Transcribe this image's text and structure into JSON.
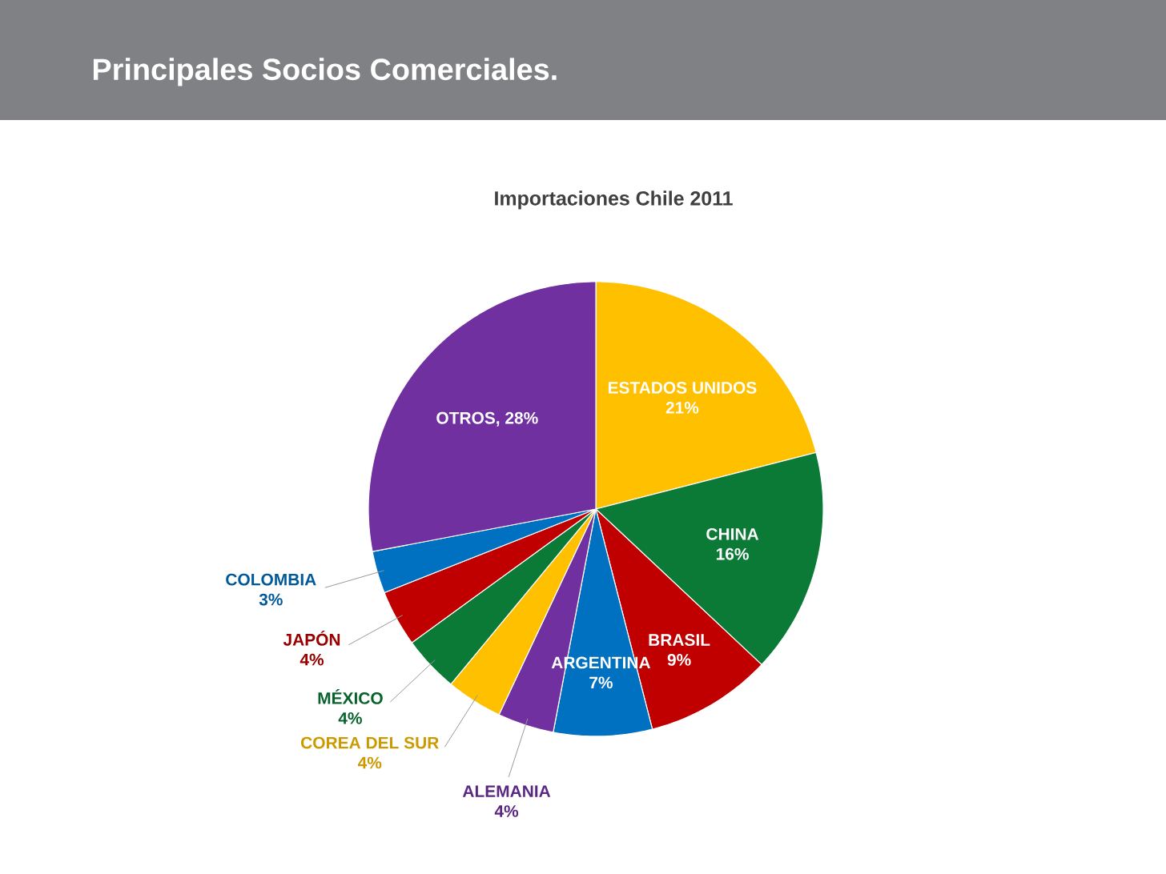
{
  "chart_data": {
    "type": "pie",
    "title": "Principales Socios Comerciales.",
    "subtitle": "Importaciones Chile 2011",
    "categories": [
      "ESTADOS UNIDOS",
      "CHINA",
      "BRASIL",
      "ARGENTINA",
      "ALEMANIA",
      "COREA DEL SUR",
      "MÉXICO",
      "JAPÓN",
      "COLOMBIA",
      "OTROS"
    ],
    "values": [
      21,
      16,
      9,
      7,
      4,
      4,
      4,
      4,
      3,
      28
    ],
    "colors": [
      "#ffc000",
      "#0a7a36",
      "#c00000",
      "#0070c0",
      "#7030a0",
      "#ffc000",
      "#0a7a36",
      "#c00000",
      "#0070c0",
      "#7030a0"
    ],
    "value_labels": [
      "21%",
      "16%",
      "9%",
      "7%",
      "4%",
      "4%",
      "4%",
      "4%",
      "3%",
      ", 28%"
    ]
  }
}
